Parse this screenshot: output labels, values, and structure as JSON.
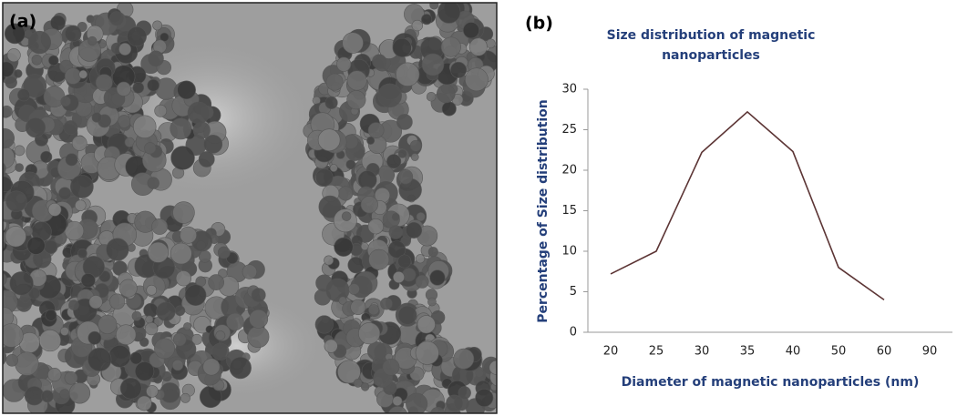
{
  "panel_a": {
    "label": "(a)"
  },
  "chart_data": {
    "type": "line",
    "panel_label": "(b)",
    "title": "Size distribution of magnetic nanoparticles",
    "x_label": "Diameter of magnetic nanoparticles (nm)",
    "y_label": "Percentage of Size distribution",
    "categories": [
      "20",
      "25",
      "30",
      "35",
      "40",
      "50",
      "60",
      "90"
    ],
    "series": [
      {
        "color": "#5c3535",
        "values": [
          7.2,
          10,
          22.2,
          27.2,
          22.3,
          8,
          4,
          null
        ]
      }
    ],
    "ylim": [
      0,
      30
    ],
    "yticks": [
      0,
      5,
      10,
      15,
      20,
      25,
      30
    ],
    "grid": false
  }
}
